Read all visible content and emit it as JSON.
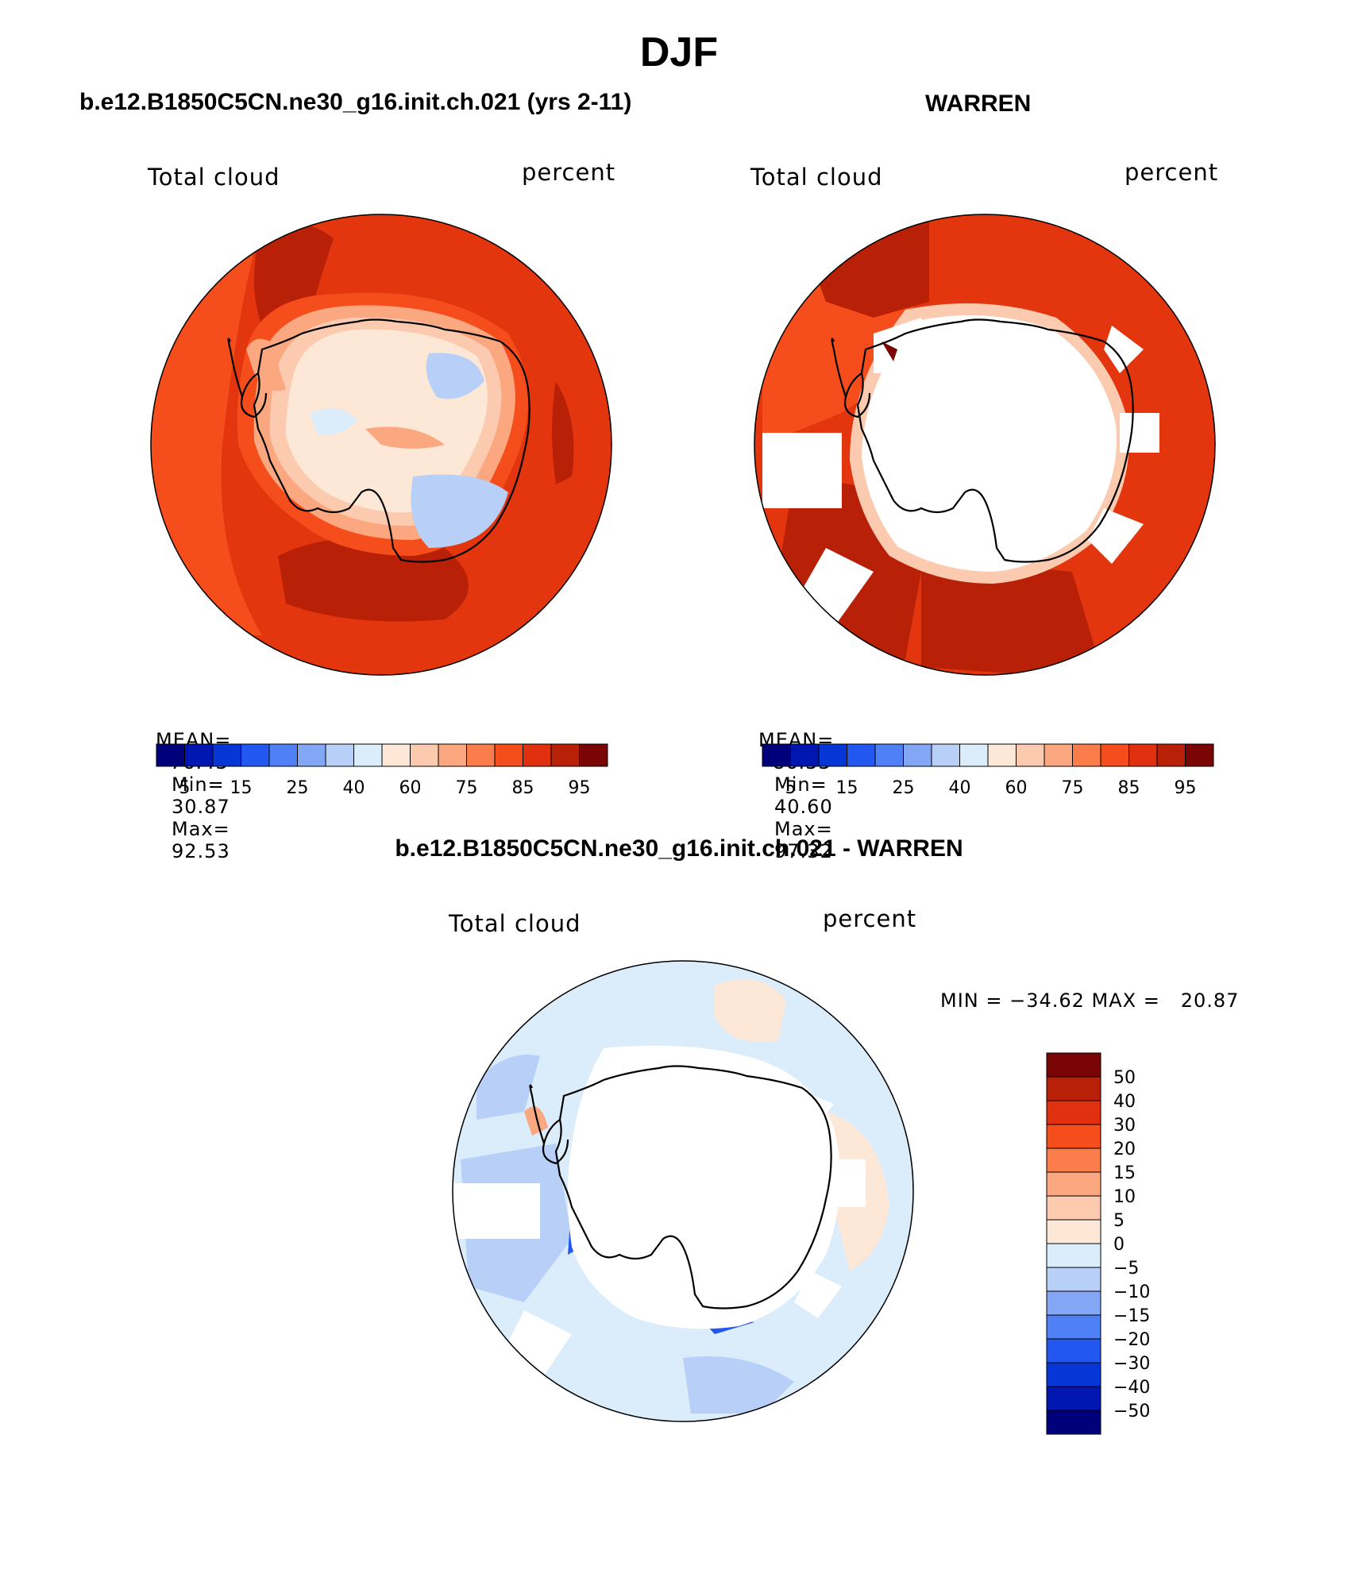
{
  "page_title": "DJF",
  "panels": [
    {
      "title": "b.e12.B1850C5CN.ne30_g16.init.ch.021 (yrs 2-11)",
      "left_label": "Total cloud",
      "right_label": "percent",
      "stats": {
        "mean_label": "MEAN=",
        "mean": "76.43",
        "min_label": "Min=",
        "min": "30.87",
        "max_label": "Max=",
        "max": "92.53"
      }
    },
    {
      "title": "WARREN",
      "left_label": "Total cloud",
      "right_label": "percent",
      "stats": {
        "mean_label": "MEAN=",
        "mean": "86.33",
        "min_label": "Min=",
        "min": "40.60",
        "max_label": "Max=",
        "max": "97.32"
      }
    },
    {
      "title": "b.e12.B1850C5CN.ne30_g16.init.ch.021 - WARREN",
      "left_label": "Total cloud",
      "right_label": "percent",
      "minmax": "MIN = −34.62 MAX =   20.87"
    }
  ],
  "colorbar_abs": {
    "colors": [
      "#00007a",
      "#0016b0",
      "#0637d6",
      "#2358f0",
      "#4f80f5",
      "#84a7f5",
      "#b8cff8",
      "#dbecfb",
      "#fde8d8",
      "#fccaae",
      "#fba77f",
      "#fb7d4b",
      "#f54d1c",
      "#e03010",
      "#b82008",
      "#7a0505"
    ],
    "labels": [
      "5",
      "15",
      "25",
      "40",
      "60",
      "75",
      "85",
      "95"
    ]
  },
  "colorbar_diff": {
    "colors": [
      "#7a0505",
      "#b82008",
      "#e03010",
      "#f54d1c",
      "#fb7d4b",
      "#fba77f",
      "#fccaae",
      "#fde8d8",
      "#dbecfb",
      "#b8cff8",
      "#84a7f5",
      "#4f80f5",
      "#2358f0",
      "#0637d6",
      "#0016b0",
      "#00007a"
    ],
    "labels": [
      "50",
      "40",
      "30",
      "20",
      "15",
      "10",
      "5",
      "0",
      "−5",
      "−10",
      "−15",
      "−20",
      "−30",
      "−40",
      "−50"
    ]
  }
}
